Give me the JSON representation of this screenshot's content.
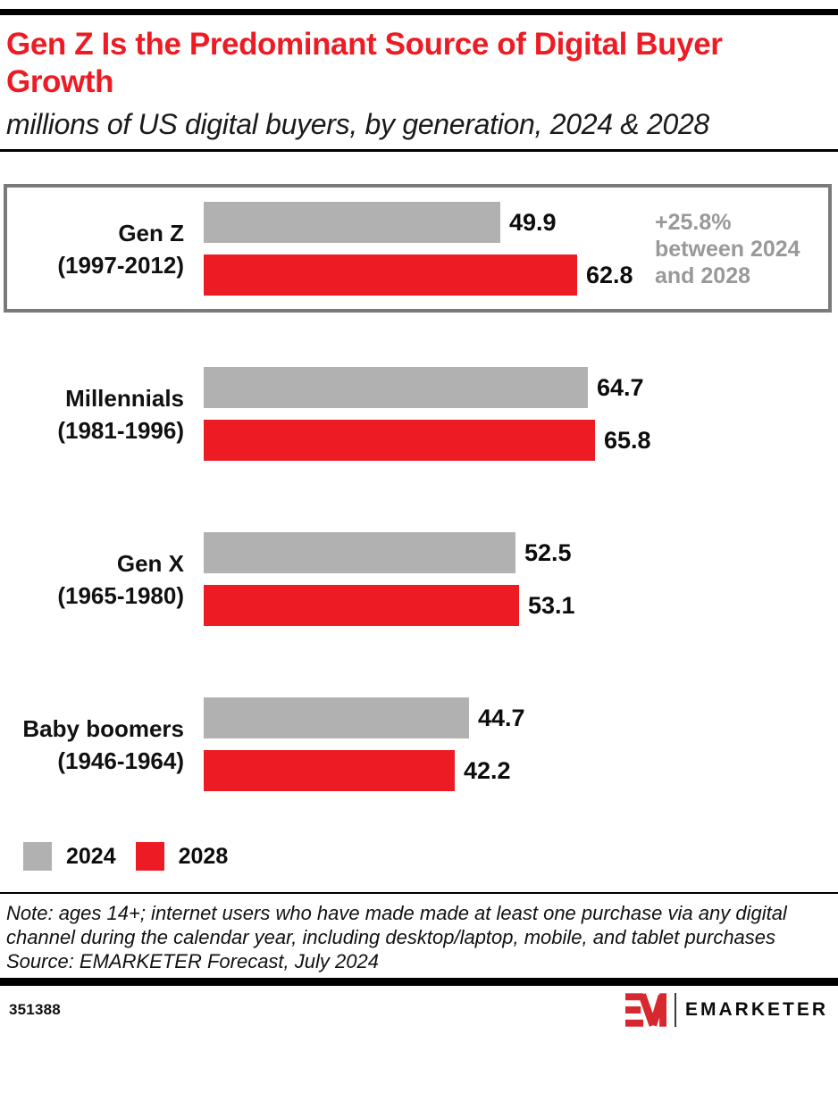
{
  "header": {
    "title": "Gen Z Is the Predominant Source of Digital Buyer Growth",
    "subtitle": "millions of US digital buyers, by generation, 2024 & 2028"
  },
  "chart_data": {
    "type": "bar",
    "orientation": "horizontal",
    "title": "Gen Z Is the Predominant Source of Digital Buyer Growth",
    "subtitle": "millions of US digital buyers, by generation, 2024 & 2028",
    "unit": "millions of US digital buyers",
    "xlim": [
      0,
      70
    ],
    "grid": false,
    "legend_position": "bottom-left",
    "series": [
      {
        "name": "2024",
        "color": "#B1B1B1"
      },
      {
        "name": "2028",
        "color": "#ED1C24"
      }
    ],
    "groups": [
      {
        "name": "Gen Z",
        "years": "(1997-2012)",
        "values": [
          49.9,
          62.8
        ],
        "highlighted": true,
        "annotation": "+25.8%\nbetween 2024\nand 2028"
      },
      {
        "name": "Millennials",
        "years": "(1981-1996)",
        "values": [
          64.7,
          65.8
        ]
      },
      {
        "name": "Gen X",
        "years": "(1965-1980)",
        "values": [
          52.5,
          53.1
        ]
      },
      {
        "name": "Baby boomers",
        "years": "(1946-1964)",
        "values": [
          44.7,
          42.2
        ]
      }
    ],
    "legend": [
      {
        "label": "2024",
        "color": "#B1B1B1"
      },
      {
        "label": "2028",
        "color": "#ED1C24"
      }
    ]
  },
  "notes": {
    "note": "Note: ages 14+; internet users who have made made at least one purchase via any digital channel during the calendar year, including desktop/laptop, mobile, and tablet purchases",
    "source": "Source: EMARKETER Forecast, July 2024"
  },
  "footer": {
    "chart_id": "351388",
    "brand": "EMARKETER"
  },
  "colors": {
    "brand_red": "#ED1C24",
    "bar_gray": "#B1B1B1",
    "annotation_gray": "#999999",
    "highlight_border": "#7A7A7A",
    "logo_red": "#D7282F"
  }
}
